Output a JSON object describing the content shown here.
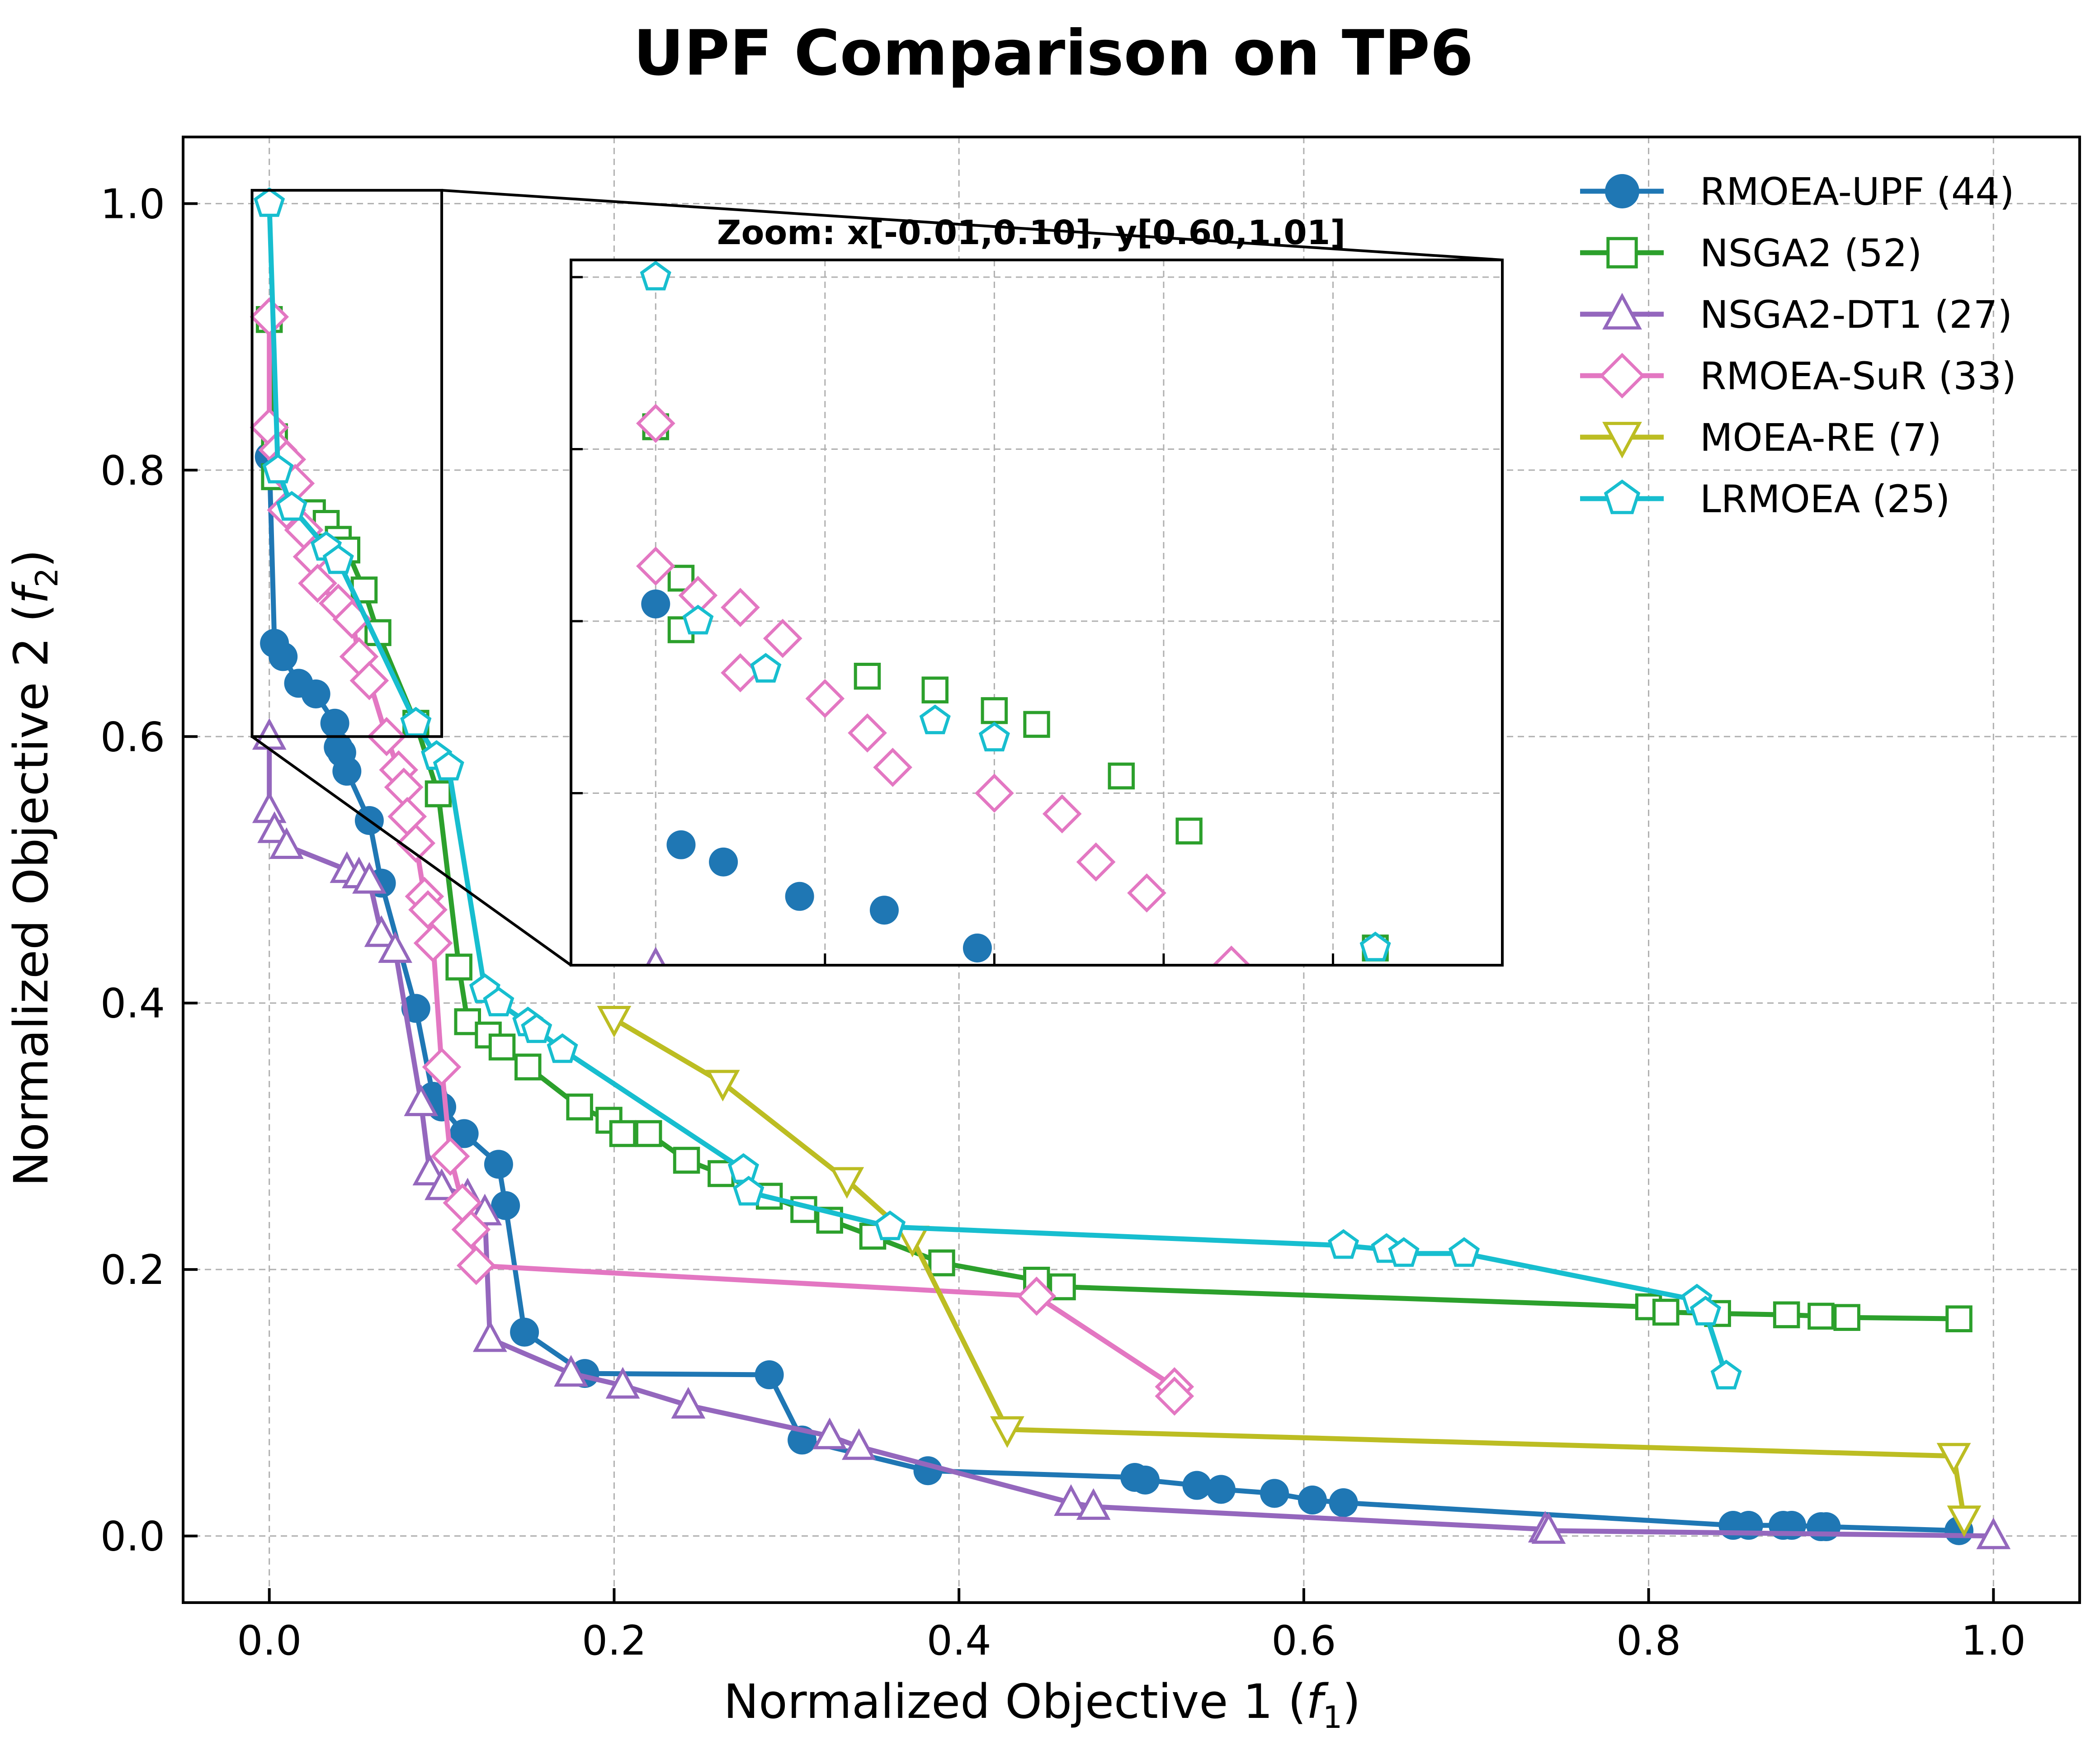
{
  "chart_data": {
    "type": "line",
    "title": "UPF Comparison on TP6",
    "xlabel": "Normalized Objective 1",
    "xlabel_sym": "f",
    "xlabel_sub": "1",
    "ylabel": "Normalized Objective 2",
    "ylabel_sym": "f",
    "ylabel_sub": "2",
    "xlim": [
      -0.05,
      1.05
    ],
    "ylim": [
      -0.05,
      1.05
    ],
    "xticks": [
      0.0,
      0.2,
      0.4,
      0.6,
      0.8,
      1.0
    ],
    "yticks": [
      0.0,
      0.2,
      0.4,
      0.6,
      0.8,
      1.0
    ],
    "xtick_labels": [
      "0.0",
      "0.2",
      "0.4",
      "0.6",
      "0.8",
      "1.0"
    ],
    "ytick_labels": [
      "0.0",
      "0.2",
      "0.4",
      "0.6",
      "0.8",
      "1.0"
    ],
    "grid": true,
    "legend_position": "top-right",
    "inset": {
      "label": "Zoom: x[-0.01,0.10], y[0.60,1.01]",
      "xlim": [
        -0.01,
        0.1
      ],
      "ylim": [
        0.6,
        1.01
      ]
    },
    "series": [
      {
        "name": "RMOEA-UPF (44)",
        "color": "#1f77b4",
        "marker": "circle",
        "filled": true,
        "points": [
          [
            0,
            0.81
          ],
          [
            0.003,
            0.67
          ],
          [
            0.008,
            0.66
          ],
          [
            0.017,
            0.64
          ],
          [
            0.027,
            0.632
          ],
          [
            0.038,
            0.61
          ],
          [
            0.04,
            0.592
          ],
          [
            0.042,
            0.588
          ],
          [
            0.045,
            0.574
          ],
          [
            0.058,
            0.537
          ],
          [
            0.065,
            0.49
          ],
          [
            0.085,
            0.396
          ],
          [
            0.095,
            0.33
          ],
          [
            0.1,
            0.322
          ],
          [
            0.113,
            0.302
          ],
          [
            0.133,
            0.279
          ],
          [
            0.137,
            0.248
          ],
          [
            0.148,
            0.153
          ],
          [
            0.183,
            0.122
          ],
          [
            0.29,
            0.121
          ],
          [
            0.309,
            0.072
          ],
          [
            0.382,
            0.049
          ],
          [
            0.502,
            0.044
          ],
          [
            0.508,
            0.042
          ],
          [
            0.538,
            0.038
          ],
          [
            0.552,
            0.035
          ],
          [
            0.583,
            0.032
          ],
          [
            0.605,
            0.027
          ],
          [
            0.623,
            0.025
          ],
          [
            0.849,
            0.008
          ],
          [
            0.858,
            0.008
          ],
          [
            0.878,
            0.008
          ],
          [
            0.883,
            0.008
          ],
          [
            0.9,
            0.007
          ],
          [
            0.903,
            0.007
          ],
          [
            0.98,
            0.004
          ]
        ]
      },
      {
        "name": "NSGA2 (52)",
        "color": "#2ca02c",
        "marker": "square",
        "filled": false,
        "points": [
          [
            0,
            0.913
          ],
          [
            0.003,
            0.825
          ],
          [
            0.003,
            0.795
          ],
          [
            0.025,
            0.768
          ],
          [
            0.033,
            0.76
          ],
          [
            0.04,
            0.748
          ],
          [
            0.045,
            0.74
          ],
          [
            0.055,
            0.71
          ],
          [
            0.063,
            0.678
          ],
          [
            0.085,
            0.61
          ],
          [
            0.098,
            0.557
          ],
          [
            0.11,
            0.427
          ],
          [
            0.115,
            0.386
          ],
          [
            0.127,
            0.376
          ],
          [
            0.135,
            0.367
          ],
          [
            0.15,
            0.352
          ],
          [
            0.18,
            0.322
          ],
          [
            0.197,
            0.312
          ],
          [
            0.205,
            0.302
          ],
          [
            0.22,
            0.302
          ],
          [
            0.242,
            0.282
          ],
          [
            0.262,
            0.272
          ],
          [
            0.29,
            0.255
          ],
          [
            0.31,
            0.245
          ],
          [
            0.325,
            0.237
          ],
          [
            0.35,
            0.225
          ],
          [
            0.39,
            0.205
          ],
          [
            0.445,
            0.192
          ],
          [
            0.46,
            0.187
          ],
          [
            0.8,
            0.172
          ],
          [
            0.81,
            0.168
          ],
          [
            0.84,
            0.167
          ],
          [
            0.88,
            0.166
          ],
          [
            0.9,
            0.165
          ],
          [
            0.915,
            0.164
          ],
          [
            0.98,
            0.163
          ]
        ]
      },
      {
        "name": "NSGA2-DT1 (27)",
        "color": "#9467bd",
        "marker": "triangle-up",
        "filled": false,
        "points": [
          [
            0,
            0.6
          ],
          [
            0,
            0.545
          ],
          [
            0.003,
            0.53
          ],
          [
            0.01,
            0.518
          ],
          [
            0.045,
            0.5
          ],
          [
            0.052,
            0.496
          ],
          [
            0.058,
            0.492
          ],
          [
            0.065,
            0.452
          ],
          [
            0.073,
            0.44
          ],
          [
            0.088,
            0.325
          ],
          [
            0.093,
            0.273
          ],
          [
            0.1,
            0.262
          ],
          [
            0.115,
            0.255
          ],
          [
            0.125,
            0.243
          ],
          [
            0.128,
            0.148
          ],
          [
            0.175,
            0.122
          ],
          [
            0.205,
            0.113
          ],
          [
            0.243,
            0.098
          ],
          [
            0.325,
            0.075
          ],
          [
            0.342,
            0.067
          ],
          [
            0.465,
            0.025
          ],
          [
            0.478,
            0.022
          ],
          [
            0.74,
            0.005
          ],
          [
            0.742,
            0.004
          ],
          [
            1,
            0
          ]
        ]
      },
      {
        "name": "RMOEA-SuR (33)",
        "color": "#e377c2",
        "marker": "diamond",
        "filled": false,
        "points": [
          [
            0,
            0.915
          ],
          [
            0,
            0.832
          ],
          [
            0.005,
            0.815
          ],
          [
            0.01,
            0.808
          ],
          [
            0.015,
            0.79
          ],
          [
            0.01,
            0.77
          ],
          [
            0.02,
            0.755
          ],
          [
            0.025,
            0.735
          ],
          [
            0.028,
            0.715
          ],
          [
            0.04,
            0.7
          ],
          [
            0.048,
            0.688
          ],
          [
            0.052,
            0.66
          ],
          [
            0.058,
            0.642
          ],
          [
            0.068,
            0.6
          ],
          [
            0.075,
            0.575
          ],
          [
            0.078,
            0.562
          ],
          [
            0.08,
            0.54
          ],
          [
            0.085,
            0.52
          ],
          [
            0.09,
            0.48
          ],
          [
            0.092,
            0.47
          ],
          [
            0.095,
            0.445
          ],
          [
            0.1,
            0.352
          ],
          [
            0.105,
            0.285
          ],
          [
            0.112,
            0.25
          ],
          [
            0.117,
            0.23
          ],
          [
            0.12,
            0.203
          ],
          [
            0.445,
            0.18
          ],
          [
            0.525,
            0.112
          ],
          [
            0.525,
            0.105
          ]
        ]
      },
      {
        "name": "MOEA-RE (7)",
        "color": "#bcbd22",
        "marker": "triangle-down",
        "filled": false,
        "points": [
          [
            0.2,
            0.388
          ],
          [
            0.263,
            0.34
          ],
          [
            0.335,
            0.267
          ],
          [
            0.373,
            0.223
          ],
          [
            0.428,
            0.08
          ],
          [
            0.977,
            0.06
          ],
          [
            0.983,
            0.013
          ]
        ]
      },
      {
        "name": "LRMOEA (25)",
        "color": "#17becf",
        "marker": "pentagon",
        "filled": false,
        "points": [
          [
            0,
            1.0
          ],
          [
            0.005,
            0.8
          ],
          [
            0.013,
            0.772
          ],
          [
            0.033,
            0.742
          ],
          [
            0.04,
            0.732
          ],
          [
            0.085,
            0.61
          ],
          [
            0.097,
            0.585
          ],
          [
            0.104,
            0.577
          ],
          [
            0.125,
            0.41
          ],
          [
            0.133,
            0.4
          ],
          [
            0.15,
            0.385
          ],
          [
            0.155,
            0.38
          ],
          [
            0.17,
            0.365
          ],
          [
            0.275,
            0.275
          ],
          [
            0.278,
            0.258
          ],
          [
            0.36,
            0.232
          ],
          [
            0.623,
            0.218
          ],
          [
            0.648,
            0.215
          ],
          [
            0.658,
            0.212
          ],
          [
            0.693,
            0.212
          ],
          [
            0.828,
            0.177
          ],
          [
            0.833,
            0.168
          ],
          [
            0.845,
            0.12
          ]
        ]
      }
    ]
  }
}
